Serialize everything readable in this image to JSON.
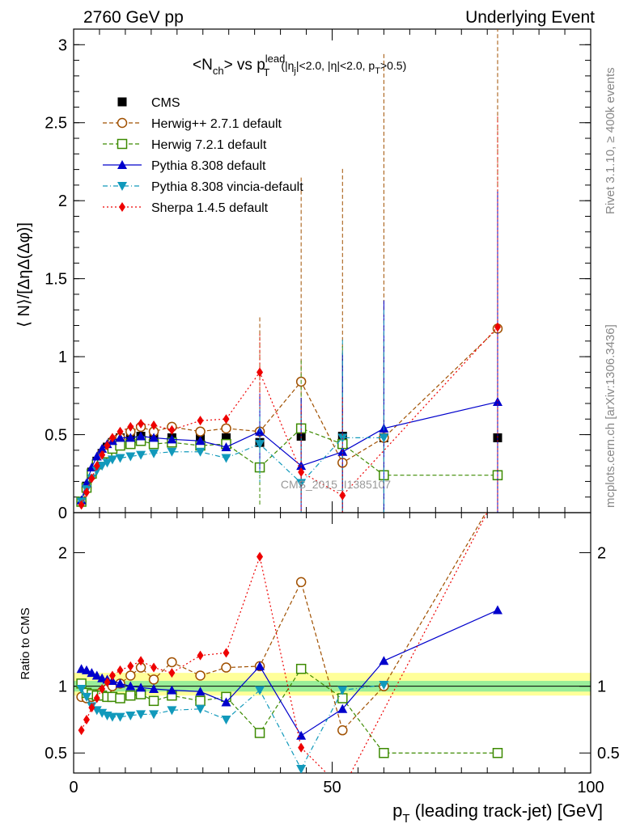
{
  "header": {
    "left": "2760 GeV pp",
    "right": "Underlying Event"
  },
  "title": {
    "main": "<N",
    "sub": "ch",
    "vs": "> vs p",
    "sup": "lead",
    "sub2": "T",
    "cond1": "(|η",
    "cond1_sub": "j",
    "cond2": "|<2.0, |η|<2.0, p",
    "cond2_sub": "T",
    "cond3": ">0.5)"
  },
  "side_labels": {
    "rivet": "Rivet 3.1.10, ≥ 400k events",
    "mcplots": "mcplots.cern.ch [arXiv:1306.3436]"
  },
  "watermark": "CMS_2015_I1385107",
  "chart_data": {
    "type": "line",
    "main_panel": {
      "ylabel": "⟨ N⟩/[ΔηΔ(Δφ)]",
      "ylim": [
        0,
        3.1
      ],
      "yticks": [
        "0",
        "0.5",
        "1",
        "1.5",
        "2",
        "2.5",
        "3"
      ],
      "ytick_values": [
        0,
        0.5,
        1,
        1.5,
        2,
        2.5,
        3
      ]
    },
    "ratio_panel": {
      "ylabel": "Ratio to CMS",
      "ylim": [
        0.35,
        2.3
      ],
      "yticks": [
        "0.5",
        "1",
        "2"
      ],
      "ytick_values": [
        0.5,
        1,
        2
      ],
      "band_inner": [
        0.96,
        1.04
      ],
      "band_outer": [
        0.93,
        1.1
      ]
    },
    "x_axis": {
      "xlabel": "p",
      "xlabel_sub": "T",
      "xlabel_rest": " (leading track-jet) [GeV]",
      "xlim": [
        0,
        100
      ],
      "xticks": [
        "0",
        "50",
        "100"
      ],
      "xtick_values": [
        0,
        50,
        100
      ]
    },
    "legend_position": "top-left",
    "series": [
      {
        "name": "CMS",
        "color": "#000000",
        "marker": "square",
        "dash": "",
        "x": [
          1.5,
          2.5,
          3.5,
          4.5,
          5.5,
          6.5,
          7.5,
          9,
          11,
          13,
          15.5,
          19,
          24.5,
          29.5,
          36,
          44,
          52,
          60,
          82
        ],
        "y": [
          0.07,
          0.17,
          0.26,
          0.33,
          0.38,
          0.42,
          0.45,
          0.48,
          0.49,
          0.49,
          0.49,
          0.48,
          0.48,
          0.48,
          0.45,
          0.49,
          0.49,
          0.48,
          0.48
        ],
        "ratio": null
      },
      {
        "name": "Herwig++ 2.7.1 default",
        "color": "#a05000",
        "marker": "circle-open",
        "dash": "5,3",
        "x": [
          1.5,
          2.5,
          3.5,
          4.5,
          5.5,
          6.5,
          7.5,
          9,
          11,
          13,
          15.5,
          19,
          24.5,
          29.5,
          36,
          44,
          52,
          60,
          82
        ],
        "y": [
          0.07,
          0.16,
          0.24,
          0.32,
          0.38,
          0.41,
          0.45,
          0.48,
          0.52,
          0.55,
          0.52,
          0.55,
          0.52,
          0.54,
          0.52,
          0.84,
          0.32,
          0.48,
          1.18
        ],
        "ratio": [
          0.92,
          0.91,
          0.92,
          0.94,
          0.96,
          0.98,
          1.0,
          1.02,
          1.08,
          1.14,
          1.05,
          1.18,
          1.08,
          1.14,
          1.15,
          1.78,
          0.67,
          1.0,
          2.45
        ]
      },
      {
        "name": "Herwig 7.2.1 default",
        "color": "#3c8a00",
        "marker": "square-open",
        "dash": "5,3",
        "x": [
          1.5,
          2.5,
          3.5,
          4.5,
          5.5,
          6.5,
          7.5,
          9,
          11,
          13,
          15.5,
          19,
          24.5,
          29.5,
          36,
          44,
          52,
          60,
          82
        ],
        "y": [
          0.07,
          0.16,
          0.25,
          0.31,
          0.35,
          0.38,
          0.41,
          0.43,
          0.44,
          0.46,
          0.44,
          0.45,
          0.43,
          0.44,
          0.29,
          0.54,
          0.44,
          0.24,
          0.24
        ],
        "ratio": [
          1.02,
          0.95,
          0.94,
          0.93,
          0.93,
          0.92,
          0.92,
          0.91,
          0.93,
          0.94,
          0.89,
          0.93,
          0.89,
          0.92,
          0.65,
          1.13,
          0.91,
          0.5,
          0.5
        ]
      },
      {
        "name": "Pythia 8.308 default",
        "color": "#0000cc",
        "marker": "triangle-up",
        "dash": "",
        "x": [
          1.5,
          2.5,
          3.5,
          4.5,
          5.5,
          6.5,
          7.5,
          9,
          11,
          13,
          15.5,
          19,
          24.5,
          29.5,
          36,
          44,
          52,
          60,
          82
        ],
        "y": [
          0.08,
          0.19,
          0.29,
          0.36,
          0.41,
          0.44,
          0.46,
          0.48,
          0.48,
          0.49,
          0.48,
          0.47,
          0.46,
          0.42,
          0.52,
          0.3,
          0.39,
          0.54,
          0.71
        ],
        "ratio": [
          1.13,
          1.12,
          1.1,
          1.08,
          1.06,
          1.05,
          1.04,
          1.02,
          1.0,
          0.99,
          0.98,
          0.97,
          0.96,
          0.88,
          1.15,
          0.63,
          0.83,
          1.19,
          1.57
        ]
      },
      {
        "name": "Pythia 8.308 vincia-default",
        "color": "#1199bb",
        "marker": "triangle-down",
        "dash": "6,3,1,3",
        "x": [
          1.5,
          2.5,
          3.5,
          4.5,
          5.5,
          6.5,
          7.5,
          9,
          11,
          13,
          15.5,
          19,
          24.5,
          29.5,
          36,
          44,
          52,
          60
        ],
        "y": [
          0.07,
          0.15,
          0.22,
          0.27,
          0.3,
          0.32,
          0.34,
          0.35,
          0.36,
          0.37,
          0.38,
          0.39,
          0.39,
          0.35,
          0.44,
          0.19,
          0.48,
          0.48
        ],
        "ratio": [
          0.98,
          0.92,
          0.85,
          0.82,
          0.8,
          0.78,
          0.77,
          0.77,
          0.78,
          0.79,
          0.79,
          0.82,
          0.83,
          0.75,
          0.97,
          0.38,
          0.97,
          1.01
        ]
      },
      {
        "name": "Sherpa 1.4.5 default",
        "color": "#ee0000",
        "marker": "diamond",
        "dash": "2,3",
        "x": [
          1.5,
          2.5,
          3.5,
          4.5,
          5.5,
          6.5,
          7.5,
          9,
          11,
          13,
          15.5,
          19,
          24.5,
          29.5,
          36,
          44,
          52,
          82
        ],
        "y": [
          0.05,
          0.13,
          0.22,
          0.3,
          0.37,
          0.43,
          0.48,
          0.52,
          0.55,
          0.57,
          0.56,
          0.53,
          0.59,
          0.6,
          0.9,
          0.26,
          0.11,
          1.19
        ],
        "ratio": [
          0.67,
          0.75,
          0.84,
          0.91,
          0.98,
          1.03,
          1.08,
          1.12,
          1.15,
          1.19,
          1.14,
          1.1,
          1.23,
          1.25,
          1.97,
          0.54,
          0.23,
          2.45
        ]
      }
    ]
  }
}
